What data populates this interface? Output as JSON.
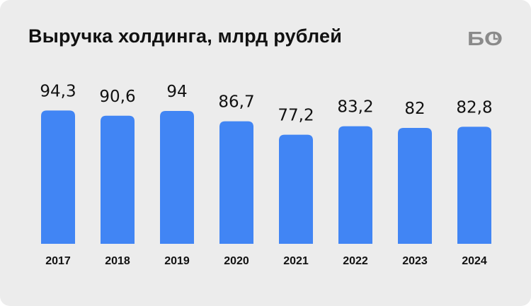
{
  "header": {
    "title": "Выручка холдинга, млрд рублей",
    "logo_text": "БО"
  },
  "colors": {
    "background": "#ececec",
    "bar": "#4185f4",
    "text": "#111111",
    "logo": "#8a8a8a"
  },
  "chart_data": {
    "type": "bar",
    "title": "Выручка холдинга, млрд рублей",
    "categories": [
      "2017",
      "2018",
      "2019",
      "2020",
      "2021",
      "2022",
      "2023",
      "2024"
    ],
    "values": [
      94.3,
      90.6,
      94,
      86.7,
      77.2,
      83.2,
      82,
      82.8
    ],
    "value_labels": [
      "94,3",
      "90,6",
      "94",
      "86,7",
      "77,2",
      "83,2",
      "82",
      "82,8"
    ],
    "xlabel": "",
    "ylabel": "",
    "grid": false,
    "legend": "none"
  }
}
